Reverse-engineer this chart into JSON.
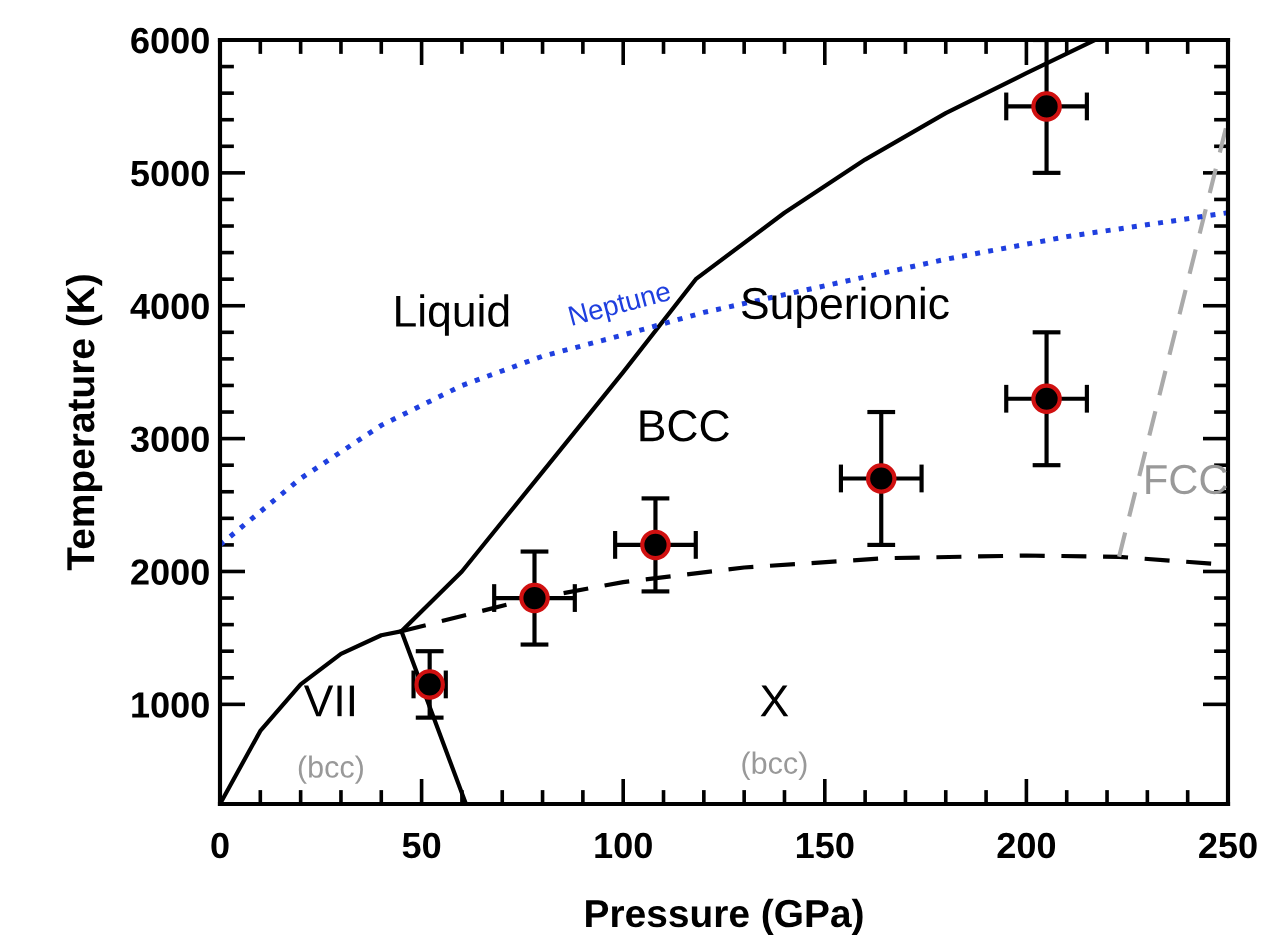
{
  "chart_data": {
    "type": "line",
    "xlabel": "Pressure (GPa)",
    "ylabel": "Temperature (K)",
    "xlim": [
      0,
      250
    ],
    "ylim": [
      250,
      6000
    ],
    "xticks": [
      0,
      50,
      100,
      150,
      200,
      250
    ],
    "yticks": [
      1000,
      2000,
      3000,
      4000,
      5000,
      6000
    ],
    "grid": false,
    "legend": false,
    "series": [
      {
        "color": "#000000",
        "line_style": "solid",
        "x": [
          45,
          60,
          80,
          100,
          118,
          140,
          160,
          180,
          200,
          217
        ],
        "values": [
          1550,
          2000,
          2750,
          3500,
          4200,
          4700,
          5100,
          5450,
          5750,
          6000
        ]
      },
      {
        "color": "#000000",
        "line_style": "solid",
        "x": [
          0,
          10,
          20,
          30,
          40,
          45
        ],
        "values": [
          250,
          800,
          1150,
          1380,
          1520,
          1550
        ]
      },
      {
        "color": "#000000",
        "line_style": "solid",
        "x": [
          45,
          61
        ],
        "values": [
          1550,
          250
        ]
      },
      {
        "color": "#000000",
        "line_style": "dashed",
        "x": [
          45,
          75,
          100,
          130,
          165,
          200,
          223,
          250
        ],
        "values": [
          1550,
          1780,
          1920,
          2030,
          2100,
          2120,
          2110,
          2050
        ]
      },
      {
        "color": "#aaaaaa",
        "line_style": "dashed",
        "x": [
          223,
          250
        ],
        "values": [
          2110,
          5400
        ]
      },
      {
        "name": "Neptune",
        "color": "#1f3fdf",
        "line_style": "dotted",
        "x": [
          0,
          20,
          40,
          60,
          80,
          100,
          120,
          150,
          180,
          210,
          250
        ],
        "values": [
          2200,
          2700,
          3100,
          3400,
          3620,
          3780,
          3950,
          4150,
          4350,
          4520,
          4700
        ]
      },
      {
        "type": "scatter",
        "color": "#000000",
        "marker": "circle",
        "x": [
          52,
          78,
          108,
          164,
          205,
          205
        ],
        "values": [
          1150,
          1800,
          2200,
          2700,
          3300,
          5500
        ],
        "errors": [
          250,
          350,
          350,
          500,
          500,
          500
        ],
        "xerrors": [
          4,
          10,
          10,
          10,
          10,
          10
        ]
      }
    ],
    "annotations": [
      "Liquid",
      "Superionic",
      "BCC",
      "FCC",
      "VII",
      "(bcc)",
      "X",
      "(bcc)"
    ]
  }
}
